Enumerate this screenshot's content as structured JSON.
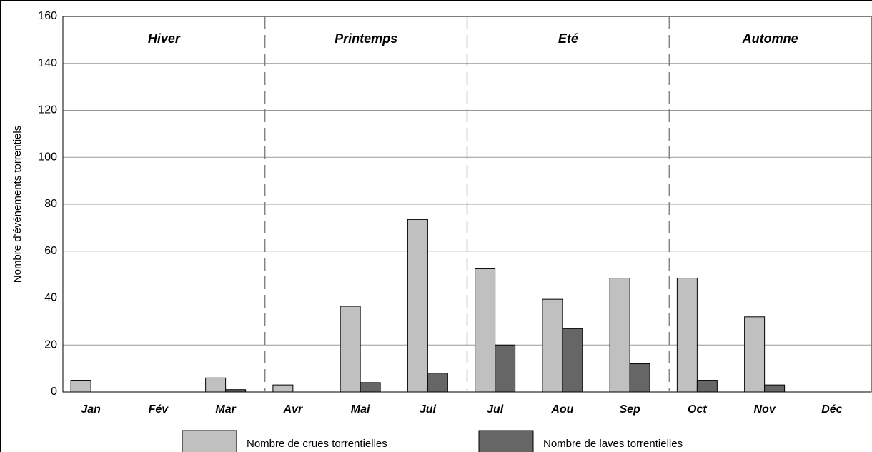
{
  "chart_data": {
    "type": "bar",
    "ylabel": "Nombre d'événements torrentiels",
    "categories": [
      "Jan",
      "Fév",
      "Mar",
      "Avr",
      "Mai",
      "Jui",
      "Jul",
      "Aou",
      "Sep",
      "Oct",
      "Nov",
      "Déc"
    ],
    "annotations": [
      "Hiver",
      "Printemps",
      "Eté",
      "Automne"
    ],
    "series": [
      {
        "name": "Nombre de crues torrentielles",
        "color": "#c0c0c0",
        "values": [
          5,
          0,
          6,
          3,
          36.5,
          73.5,
          52.5,
          39.5,
          48.5,
          48.5,
          32,
          0
        ]
      },
      {
        "name": "Nombre de laves torrentielles",
        "color": "#666666",
        "values": [
          0,
          0,
          1,
          0,
          4,
          8,
          20,
          27,
          12,
          5,
          3,
          0
        ]
      }
    ],
    "ylim": [
      0,
      160
    ],
    "yticks": [
      0,
      20,
      40,
      60,
      80,
      100,
      120,
      140,
      160
    ],
    "grid": true
  }
}
